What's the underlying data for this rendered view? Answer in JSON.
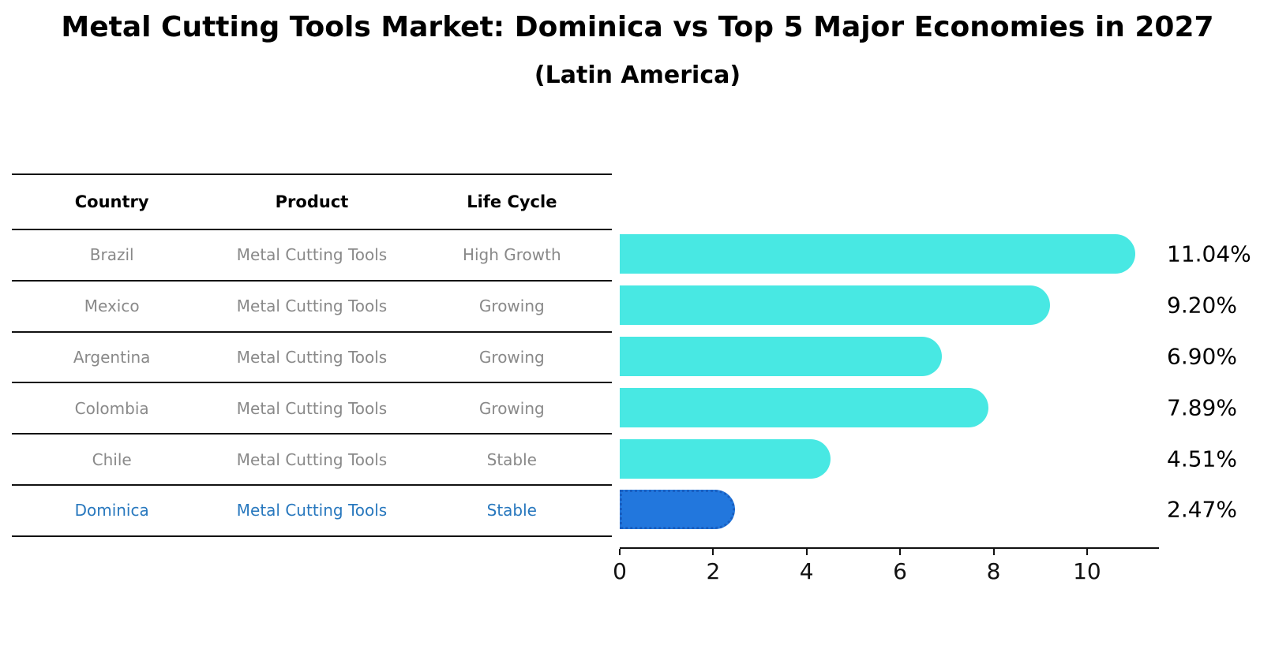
{
  "title": "Metal Cutting Tools Market: Dominica vs Top 5 Major Economies in 2027",
  "subtitle": "(Latin America)",
  "table": {
    "headers": [
      "Country",
      "Product",
      "Life Cycle"
    ],
    "rows": [
      {
        "country": "Brazil",
        "product": "Metal Cutting Tools",
        "life_cycle": "High Growth",
        "highlighted": false
      },
      {
        "country": "Mexico",
        "product": "Metal Cutting Tools",
        "life_cycle": "Growing",
        "highlighted": false
      },
      {
        "country": "Argentina",
        "product": "Metal Cutting Tools",
        "life_cycle": "Growing",
        "highlighted": false
      },
      {
        "country": "Colombia",
        "product": "Metal Cutting Tools",
        "life_cycle": "Growing",
        "highlighted": false
      },
      {
        "country": "Chile",
        "product": "Metal Cutting Tools",
        "life_cycle": "Stable",
        "highlighted": false
      },
      {
        "country": "Dominica",
        "product": "Metal Cutting Tools",
        "life_cycle": "Stable",
        "highlighted": true
      }
    ]
  },
  "chart_data": {
    "type": "bar",
    "orientation": "horizontal",
    "title": "Metal Cutting Tools Market: Dominica vs Top 5 Major Economies in 2027 (Latin America)",
    "categories": [
      "Brazil",
      "Mexico",
      "Argentina",
      "Colombia",
      "Chile",
      "Dominica"
    ],
    "values": [
      11.04,
      9.2,
      6.9,
      7.89,
      4.51,
      2.47
    ],
    "value_labels": [
      "11.04%",
      "9.20%",
      "6.90%",
      "7.89%",
      "4.51%",
      "2.47%"
    ],
    "xlabel": "",
    "ylabel": "",
    "xlim": [
      0,
      11.54
    ],
    "xticks": [
      0,
      2,
      4,
      6,
      8,
      10
    ],
    "grid": false,
    "legend": false,
    "bar_color": "#48e8e3",
    "highlight_color": "#2277dd",
    "highlight_index": 5
  },
  "colors": {
    "bar_default": "#48e8e3",
    "bar_highlight": "#2277dd",
    "highlight_border": "#1a5fc0",
    "table_text": "#898989",
    "table_highlight_text": "#2878be",
    "axis": "#111111"
  }
}
